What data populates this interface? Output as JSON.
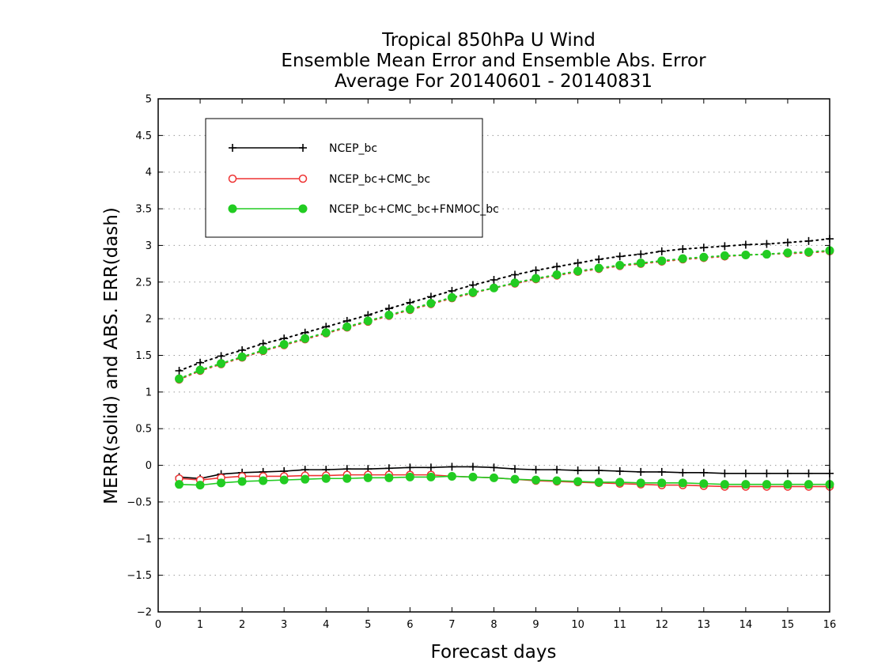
{
  "chart_data": {
    "type": "line",
    "title": [
      "Tropical 850hPa U Wind",
      "Ensemble Mean Error and Ensemble Abs. Error",
      "Average For 20140601 - 20140831"
    ],
    "xlabel": "Forecast days",
    "ylabel": "MERR(solid) and ABS. ERR(dash)",
    "xlim": [
      0,
      16
    ],
    "ylim": [
      -2,
      5
    ],
    "xticks": [
      "0",
      "1",
      "2",
      "3",
      "4",
      "5",
      "6",
      "7",
      "8",
      "9",
      "10",
      "11",
      "12",
      "13",
      "14",
      "15",
      "16"
    ],
    "yticks": [
      "−2",
      "−1.5",
      "−1",
      "−0.5",
      "0",
      "0.5",
      "1",
      "1.5",
      "2",
      "2.5",
      "3",
      "3.5",
      "4",
      "4.5",
      "5"
    ],
    "grid": "horizontal dotted",
    "legend_position": "top-left",
    "x": [
      0.5,
      1,
      1.5,
      2,
      2.5,
      3,
      3.5,
      4,
      4.5,
      5,
      5.5,
      6,
      6.5,
      7,
      7.5,
      8,
      8.5,
      9,
      9.5,
      10,
      10.5,
      11,
      11.5,
      12,
      12.5,
      13,
      13.5,
      14,
      14.5,
      15,
      15.5,
      16
    ],
    "series": [
      {
        "name": "NCEP_bc",
        "color": "#000000",
        "marker": "plus",
        "abs_err": [
          1.29,
          1.4,
          1.49,
          1.57,
          1.66,
          1.73,
          1.81,
          1.89,
          1.97,
          2.05,
          2.14,
          2.22,
          2.3,
          2.38,
          2.46,
          2.53,
          2.6,
          2.66,
          2.71,
          2.76,
          2.81,
          2.85,
          2.88,
          2.92,
          2.95,
          2.97,
          2.99,
          3.01,
          3.02,
          3.04,
          3.06,
          3.09
        ],
        "mean_err": [
          -0.16,
          -0.18,
          -0.12,
          -0.1,
          -0.09,
          -0.08,
          -0.06,
          -0.06,
          -0.05,
          -0.05,
          -0.04,
          -0.03,
          -0.03,
          -0.02,
          -0.02,
          -0.03,
          -0.05,
          -0.06,
          -0.06,
          -0.07,
          -0.07,
          -0.08,
          -0.09,
          -0.09,
          -0.1,
          -0.1,
          -0.11,
          -0.11,
          -0.11,
          -0.11,
          -0.11,
          -0.11
        ]
      },
      {
        "name": "NCEP_bc+CMC_bc",
        "color": "#ee3333",
        "marker": "circle-open",
        "abs_err": [
          1.17,
          1.29,
          1.38,
          1.47,
          1.56,
          1.64,
          1.72,
          1.8,
          1.88,
          1.96,
          2.04,
          2.12,
          2.2,
          2.28,
          2.35,
          2.42,
          2.48,
          2.54,
          2.59,
          2.64,
          2.68,
          2.72,
          2.75,
          2.78,
          2.81,
          2.83,
          2.85,
          2.87,
          2.88,
          2.89,
          2.9,
          2.92
        ],
        "mean_err": [
          -0.18,
          -0.2,
          -0.17,
          -0.15,
          -0.15,
          -0.15,
          -0.14,
          -0.14,
          -0.13,
          -0.13,
          -0.13,
          -0.13,
          -0.13,
          -0.15,
          -0.16,
          -0.17,
          -0.19,
          -0.21,
          -0.22,
          -0.23,
          -0.24,
          -0.25,
          -0.26,
          -0.27,
          -0.27,
          -0.28,
          -0.29,
          -0.29,
          -0.29,
          -0.29,
          -0.29,
          -0.29
        ]
      },
      {
        "name": "NCEP_bc+CMC_bc+FNMOC_bc",
        "color": "#22cc22",
        "marker": "circle-filled",
        "abs_err": [
          1.18,
          1.3,
          1.39,
          1.48,
          1.57,
          1.65,
          1.73,
          1.81,
          1.89,
          1.97,
          2.05,
          2.13,
          2.21,
          2.29,
          2.36,
          2.42,
          2.49,
          2.55,
          2.6,
          2.65,
          2.69,
          2.73,
          2.76,
          2.79,
          2.82,
          2.84,
          2.86,
          2.87,
          2.88,
          2.9,
          2.91,
          2.93
        ],
        "mean_err": [
          -0.26,
          -0.27,
          -0.24,
          -0.22,
          -0.21,
          -0.2,
          -0.19,
          -0.18,
          -0.18,
          -0.17,
          -0.17,
          -0.16,
          -0.16,
          -0.15,
          -0.16,
          -0.17,
          -0.19,
          -0.2,
          -0.21,
          -0.22,
          -0.23,
          -0.23,
          -0.24,
          -0.24,
          -0.24,
          -0.25,
          -0.26,
          -0.26,
          -0.26,
          -0.26,
          -0.26,
          -0.26
        ]
      }
    ]
  }
}
